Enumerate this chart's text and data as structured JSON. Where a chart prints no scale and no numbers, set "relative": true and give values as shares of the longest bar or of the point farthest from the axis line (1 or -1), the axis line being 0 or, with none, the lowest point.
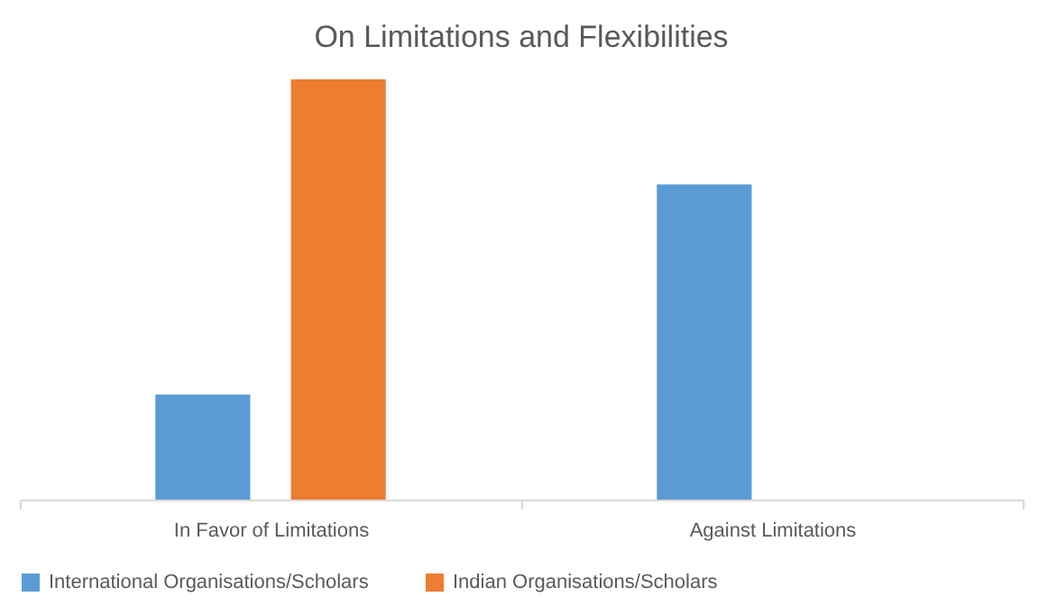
{
  "chart_data": {
    "type": "bar",
    "title": "On Limitations and Flexibilities",
    "categories": [
      "In Favor of Limitations",
      "Against Limitations"
    ],
    "relative": true,
    "legend": "bottom",
    "grid": false,
    "series": [
      {
        "name": "International Organisations/Scholars",
        "color": "#5b9bd5",
        "values": [
          0.25,
          0.75
        ]
      },
      {
        "name": "Indian Organisations/Scholars",
        "color": "#ed7d31",
        "values": [
          1,
          0
        ]
      }
    ]
  }
}
